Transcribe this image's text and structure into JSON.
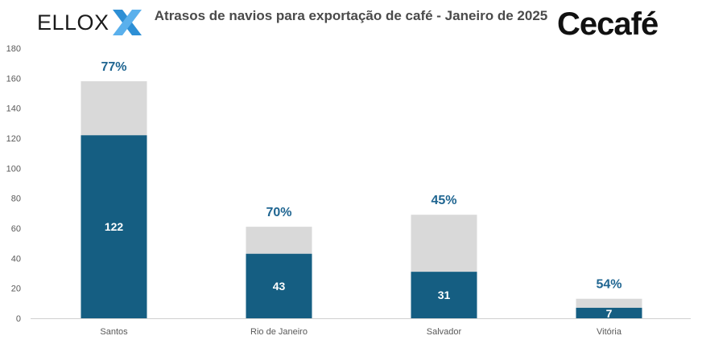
{
  "header": {
    "title": "Atrasos de navios para exportação de café - Janeiro de 2025",
    "logo_left": "ELLOX",
    "logo_right": "Cecafé"
  },
  "colors": {
    "delayed": "#155e82",
    "total": "#d9d9d9",
    "percent": "#1f6591",
    "axis": "#595959"
  },
  "chart_data": {
    "type": "bar",
    "stacked": true,
    "categories": [
      "Santos",
      "Rio de Janeiro",
      "Salvador",
      "Vitória"
    ],
    "series": [
      {
        "values": [
          122,
          43,
          31,
          7
        ]
      },
      {
        "values": [
          36,
          18,
          38,
          6
        ]
      }
    ],
    "percent_labels": [
      "77%",
      "70%",
      "45%",
      "54%"
    ],
    "ylim": [
      0,
      180
    ],
    "yticks": [
      0,
      20,
      40,
      60,
      80,
      100,
      120,
      140,
      160,
      180
    ],
    "grid": false,
    "legend": "none"
  }
}
